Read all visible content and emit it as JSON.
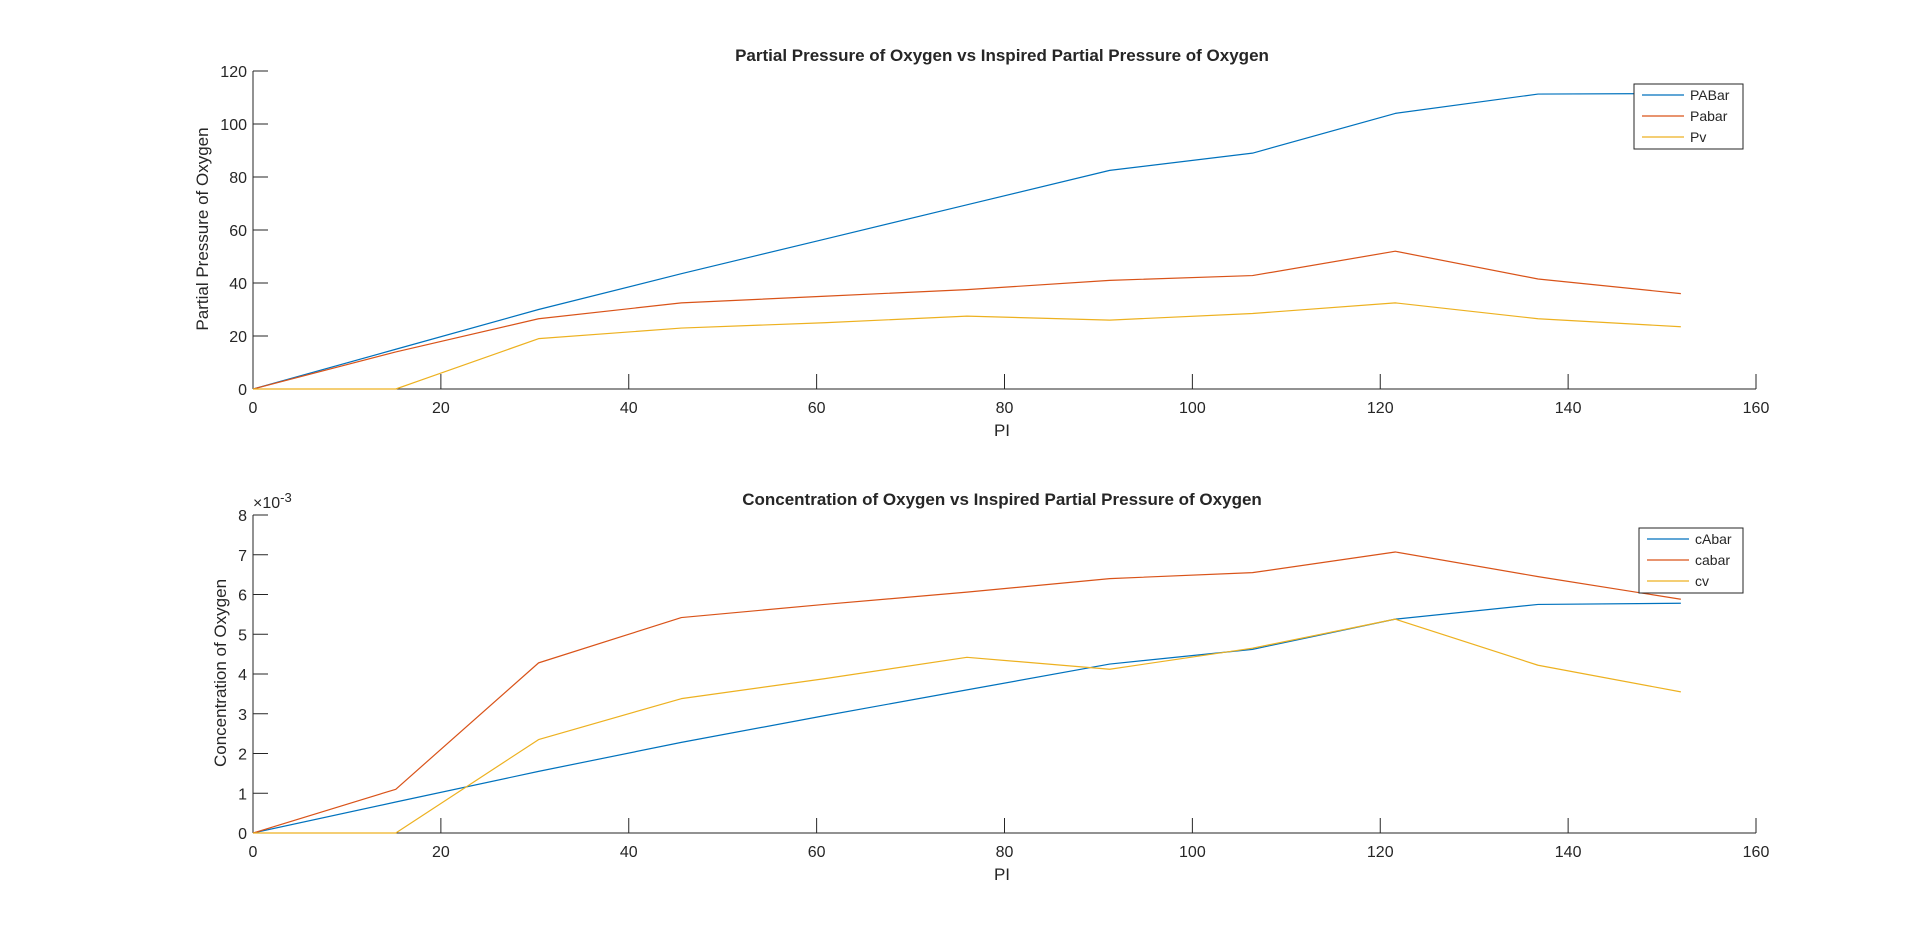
{
  "colors": {
    "blue": "#0072BD",
    "orange": "#D95319",
    "yellow": "#EDB120",
    "axis": "#262626",
    "background": "#ffffff"
  },
  "chart_data": [
    {
      "type": "line",
      "title": "Partial Pressure of Oxygen vs Inspired Partial Pressure of Oxygen",
      "xlabel": "PI",
      "ylabel": "Partial Pressure of Oxygen",
      "xlim": [
        0,
        160
      ],
      "ylim": [
        0,
        120
      ],
      "xticks": [
        0,
        20,
        40,
        60,
        80,
        100,
        120,
        140,
        160
      ],
      "yticks": [
        0,
        20,
        40,
        60,
        80,
        100,
        120
      ],
      "legend_position": "top-right",
      "grid": false,
      "x": [
        0,
        15.2,
        30.4,
        45.6,
        60.8,
        76,
        91.2,
        106.4,
        121.6,
        136.8,
        152
      ],
      "series": [
        {
          "name": "PABar",
          "color": "#0072BD",
          "values": [
            0,
            15,
            30,
            43.5,
            56.5,
            69.5,
            82.5,
            89,
            104,
            111.3,
            111.5
          ]
        },
        {
          "name": "Pabar",
          "color": "#D95319",
          "values": [
            0,
            14,
            26.5,
            32.5,
            35,
            37.5,
            41,
            42.8,
            52,
            41.5,
            36
          ]
        },
        {
          "name": "Pv",
          "color": "#EDB120",
          "values": [
            0,
            0,
            19,
            23,
            25,
            27.5,
            26,
            28.5,
            32.5,
            26.5,
            23.5
          ]
        }
      ]
    },
    {
      "type": "line",
      "title": "Concentration of Oxygen vs Inspired Partial Pressure of Oxygen",
      "xlabel": "PI",
      "ylabel": "Concentration of Oxygen",
      "y_exponent_label": "×10",
      "y_exponent_power": "-3",
      "xlim": [
        0,
        160
      ],
      "ylim": [
        0,
        8
      ],
      "xticks": [
        0,
        20,
        40,
        60,
        80,
        100,
        120,
        140,
        160
      ],
      "yticks": [
        0,
        1,
        2,
        3,
        4,
        5,
        6,
        7,
        8
      ],
      "legend_position": "top-right",
      "grid": false,
      "x": [
        0,
        15.2,
        30.4,
        45.6,
        60.8,
        76,
        91.2,
        106.4,
        121.6,
        136.8,
        152
      ],
      "series": [
        {
          "name": "cAbar",
          "color": "#0072BD",
          "values": [
            0,
            0.78,
            1.55,
            2.28,
            2.95,
            3.6,
            4.25,
            4.62,
            5.38,
            5.75,
            5.78
          ]
        },
        {
          "name": "cabar",
          "color": "#D95319",
          "values": [
            0,
            1.1,
            4.28,
            5.42,
            5.75,
            6.06,
            6.4,
            6.55,
            7.07,
            6.45,
            5.88
          ]
        },
        {
          "name": "cv",
          "color": "#EDB120",
          "values": [
            0,
            0,
            2.35,
            3.38,
            3.88,
            4.42,
            4.12,
            4.65,
            5.38,
            4.22,
            3.55
          ]
        }
      ]
    }
  ]
}
